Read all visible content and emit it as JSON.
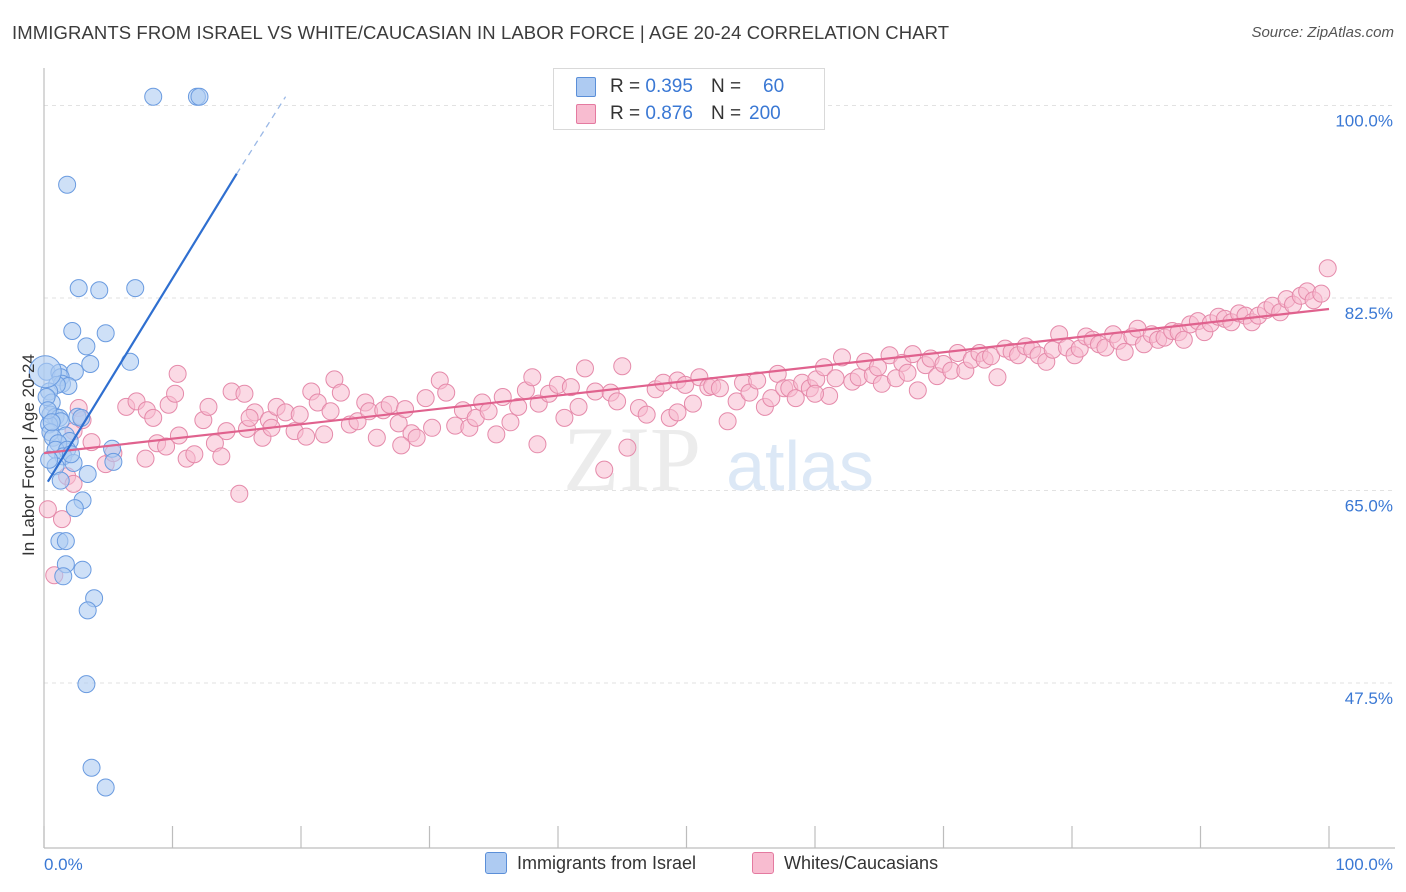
{
  "header": {
    "title": "IMMIGRANTS FROM ISRAEL VS WHITE/CAUCASIAN IN LABOR FORCE | AGE 20-24 CORRELATION CHART",
    "source": "Source: ZipAtlas.com"
  },
  "watermark": {
    "zip": "ZIP",
    "atlas": "atlas"
  },
  "legend": {
    "r_label": "R =",
    "n_label": "N =",
    "rows": [
      {
        "r": "0.395",
        "n": "60",
        "fill": "#aecbf2",
        "stroke": "#5b8fd8"
      },
      {
        "r": "0.876",
        "n": "200",
        "fill": "#f8bcd0",
        "stroke": "#e47aa0"
      }
    ]
  },
  "bottom_legend": {
    "items": [
      {
        "label": "Immigrants from Israel",
        "fill": "#aecbf2",
        "stroke": "#5b8fd8"
      },
      {
        "label": "Whites/Caucasians",
        "fill": "#f8bcd0",
        "stroke": "#e47aa0"
      }
    ]
  },
  "chart_data": {
    "type": "scatter",
    "ylabel": "In Labor Force | Age 20-24",
    "xlim": [
      0,
      100
    ],
    "ylim": [
      32.5,
      102.5
    ],
    "x_tick_labels": [
      "0.0%",
      "100.0%"
    ],
    "y_ticks": [
      47.5,
      65.0,
      82.5,
      100.0
    ],
    "y_tick_labels": [
      "47.5%",
      "65.0%",
      "82.5%",
      "100.0%"
    ],
    "grid": true,
    "colors": {
      "blue_fill": "#aecbf2",
      "blue_line": "#2f6fd0",
      "pink_fill": "#f8bcd0",
      "pink_line": "#e0628e",
      "tick_text": "#3a78d4"
    },
    "series": [
      {
        "name": "Immigrants from Israel",
        "trend": {
          "x": [
            0.3,
            15
          ],
          "y": [
            65.8,
            93.8
          ],
          "dashed_to": [
            18.8,
            100.8
          ]
        },
        "points": [
          [
            8.5,
            100.8
          ],
          [
            11.9,
            100.8
          ],
          [
            12.1,
            100.8
          ],
          [
            1.8,
            92.8
          ],
          [
            2.7,
            83.4
          ],
          [
            4.3,
            83.2
          ],
          [
            7.1,
            83.4
          ],
          [
            2.2,
            79.5
          ],
          [
            4.8,
            79.3
          ],
          [
            3.3,
            78.1
          ],
          [
            3.6,
            76.5
          ],
          [
            6.7,
            76.7
          ],
          [
            0.2,
            75.8
          ],
          [
            1.2,
            75.7
          ],
          [
            2.4,
            75.8
          ],
          [
            1.3,
            75.3
          ],
          [
            1.4,
            74.7
          ],
          [
            1.9,
            74.5
          ],
          [
            1.0,
            74.6
          ],
          [
            0.4,
            74.0
          ],
          [
            0.6,
            73.0
          ],
          [
            0.5,
            71.9
          ],
          [
            0.9,
            71.7
          ],
          [
            1.2,
            71.6
          ],
          [
            1.3,
            71.3
          ],
          [
            2.6,
            71.7
          ],
          [
            2.9,
            71.6
          ],
          [
            0.4,
            71.0
          ],
          [
            0.5,
            70.3
          ],
          [
            1.7,
            70.0
          ],
          [
            2.0,
            69.5
          ],
          [
            0.7,
            69.8
          ],
          [
            1.1,
            69.3
          ],
          [
            0.9,
            68.7
          ],
          [
            1.8,
            68.7
          ],
          [
            5.3,
            68.8
          ],
          [
            1.5,
            68.1
          ],
          [
            2.3,
            67.5
          ],
          [
            0.9,
            67.2
          ],
          [
            3.4,
            66.5
          ],
          [
            5.4,
            67.6
          ],
          [
            1.3,
            65.9
          ],
          [
            3.0,
            64.1
          ],
          [
            2.4,
            63.4
          ],
          [
            1.2,
            60.4
          ],
          [
            1.7,
            60.4
          ],
          [
            1.7,
            58.3
          ],
          [
            3.0,
            57.8
          ],
          [
            1.5,
            57.2
          ],
          [
            3.9,
            55.2
          ],
          [
            3.4,
            54.1
          ],
          [
            3.3,
            47.4
          ],
          [
            3.7,
            39.8
          ],
          [
            4.8,
            38.0
          ],
          [
            0.1,
            75.8
          ],
          [
            0.2,
            73.5
          ],
          [
            0.3,
            72.3
          ],
          [
            0.6,
            71.2
          ],
          [
            2.1,
            68.3
          ],
          [
            0.4,
            67.8
          ]
        ]
      },
      {
        "name": "Whites/Caucasians",
        "trend": {
          "x": [
            0,
            100
          ],
          "y": [
            68.4,
            81.5
          ]
        },
        "points": [
          [
            0.3,
            63.3
          ],
          [
            1.4,
            62.4
          ],
          [
            0.8,
            57.3
          ],
          [
            1.8,
            66.3
          ],
          [
            2.3,
            65.6
          ],
          [
            2.3,
            70.4
          ],
          [
            2.7,
            72.5
          ],
          [
            3.0,
            71.4
          ],
          [
            3.7,
            69.4
          ],
          [
            4.8,
            67.4
          ],
          [
            5.4,
            68.4
          ],
          [
            6.4,
            72.6
          ],
          [
            7.2,
            73.1
          ],
          [
            7.9,
            67.9
          ],
          [
            8.0,
            72.3
          ],
          [
            8.5,
            71.6
          ],
          [
            8.8,
            69.3
          ],
          [
            9.5,
            69.0
          ],
          [
            9.7,
            72.8
          ],
          [
            10.2,
            73.8
          ],
          [
            10.4,
            75.6
          ],
          [
            10.5,
            70.0
          ],
          [
            11.1,
            67.9
          ],
          [
            11.7,
            68.3
          ],
          [
            12.4,
            71.4
          ],
          [
            12.8,
            72.6
          ],
          [
            13.3,
            69.3
          ],
          [
            13.8,
            68.1
          ],
          [
            14.2,
            70.4
          ],
          [
            14.6,
            74.0
          ],
          [
            15.2,
            64.7
          ],
          [
            15.6,
            73.8
          ],
          [
            15.8,
            70.6
          ],
          [
            16.4,
            72.1
          ],
          [
            17.0,
            69.8
          ],
          [
            17.5,
            71.4
          ],
          [
            17.7,
            70.7
          ],
          [
            18.1,
            72.6
          ],
          [
            18.8,
            72.1
          ],
          [
            19.5,
            70.4
          ],
          [
            19.9,
            71.9
          ],
          [
            20.4,
            69.9
          ],
          [
            20.8,
            74.0
          ],
          [
            21.3,
            73.0
          ],
          [
            21.8,
            70.1
          ],
          [
            22.3,
            72.2
          ],
          [
            22.6,
            75.1
          ],
          [
            23.1,
            73.9
          ],
          [
            23.8,
            71.0
          ],
          [
            24.4,
            71.3
          ],
          [
            25.0,
            73.0
          ],
          [
            25.3,
            72.2
          ],
          [
            25.9,
            69.8
          ],
          [
            26.4,
            72.3
          ],
          [
            26.9,
            72.8
          ],
          [
            27.6,
            71.1
          ],
          [
            28.1,
            72.4
          ],
          [
            28.6,
            70.2
          ],
          [
            29.0,
            69.8
          ],
          [
            29.7,
            73.4
          ],
          [
            30.2,
            70.7
          ],
          [
            30.8,
            75.0
          ],
          [
            31.3,
            73.9
          ],
          [
            32.0,
            70.9
          ],
          [
            32.6,
            72.3
          ],
          [
            33.1,
            70.7
          ],
          [
            33.6,
            71.6
          ],
          [
            34.1,
            73.0
          ],
          [
            34.6,
            72.2
          ],
          [
            35.2,
            70.1
          ],
          [
            35.7,
            73.5
          ],
          [
            36.3,
            71.2
          ],
          [
            36.9,
            72.6
          ],
          [
            37.5,
            74.1
          ],
          [
            38.0,
            75.3
          ],
          [
            38.5,
            72.9
          ],
          [
            39.3,
            73.8
          ],
          [
            40.0,
            74.6
          ],
          [
            40.5,
            71.6
          ],
          [
            41.0,
            74.4
          ],
          [
            41.6,
            72.6
          ],
          [
            42.1,
            76.1
          ],
          [
            42.9,
            74.0
          ],
          [
            43.6,
            66.9
          ],
          [
            44.1,
            73.9
          ],
          [
            44.6,
            73.1
          ],
          [
            45.0,
            76.3
          ],
          [
            45.4,
            68.9
          ],
          [
            46.3,
            72.5
          ],
          [
            46.9,
            71.9
          ],
          [
            47.6,
            74.2
          ],
          [
            48.2,
            74.8
          ],
          [
            48.7,
            71.6
          ],
          [
            49.3,
            75.0
          ],
          [
            49.9,
            74.6
          ],
          [
            50.5,
            72.9
          ],
          [
            51.0,
            75.3
          ],
          [
            51.7,
            74.4
          ],
          [
            52.0,
            74.5
          ],
          [
            52.6,
            74.3
          ],
          [
            53.2,
            71.3
          ],
          [
            53.9,
            73.1
          ],
          [
            54.4,
            74.8
          ],
          [
            54.9,
            73.9
          ],
          [
            55.5,
            75.0
          ],
          [
            56.1,
            72.6
          ],
          [
            56.6,
            73.4
          ],
          [
            57.1,
            75.6
          ],
          [
            57.6,
            74.3
          ],
          [
            58.0,
            74.3
          ],
          [
            58.5,
            73.4
          ],
          [
            59.0,
            74.8
          ],
          [
            59.6,
            74.3
          ],
          [
            60.1,
            75.1
          ],
          [
            60.7,
            76.2
          ],
          [
            61.1,
            73.6
          ],
          [
            61.6,
            75.2
          ],
          [
            62.1,
            77.1
          ],
          [
            62.9,
            74.9
          ],
          [
            63.4,
            75.3
          ],
          [
            63.9,
            76.7
          ],
          [
            64.5,
            75.5
          ],
          [
            64.9,
            76.2
          ],
          [
            65.2,
            74.7
          ],
          [
            65.8,
            77.3
          ],
          [
            66.3,
            75.2
          ],
          [
            66.8,
            76.6
          ],
          [
            67.2,
            75.7
          ],
          [
            67.6,
            77.4
          ],
          [
            68.0,
            74.1
          ],
          [
            68.6,
            76.4
          ],
          [
            69.0,
            77.0
          ],
          [
            69.5,
            75.4
          ],
          [
            70.0,
            76.5
          ],
          [
            70.6,
            75.9
          ],
          [
            71.1,
            77.5
          ],
          [
            71.7,
            75.9
          ],
          [
            72.2,
            76.9
          ],
          [
            72.8,
            77.5
          ],
          [
            73.2,
            76.9
          ],
          [
            73.7,
            77.2
          ],
          [
            74.2,
            75.3
          ],
          [
            74.8,
            77.9
          ],
          [
            75.3,
            77.6
          ],
          [
            75.8,
            77.3
          ],
          [
            76.4,
            78.1
          ],
          [
            76.9,
            77.8
          ],
          [
            77.4,
            77.3
          ],
          [
            78.0,
            76.7
          ],
          [
            78.5,
            77.8
          ],
          [
            79.0,
            79.2
          ],
          [
            79.6,
            78.0
          ],
          [
            80.2,
            77.3
          ],
          [
            80.6,
            77.9
          ],
          [
            81.1,
            79.0
          ],
          [
            81.6,
            78.7
          ],
          [
            82.1,
            78.3
          ],
          [
            82.6,
            78.0
          ],
          [
            83.2,
            79.2
          ],
          [
            83.6,
            78.6
          ],
          [
            84.1,
            77.6
          ],
          [
            84.7,
            79.0
          ],
          [
            85.1,
            79.7
          ],
          [
            85.6,
            78.3
          ],
          [
            86.2,
            79.2
          ],
          [
            86.7,
            78.7
          ],
          [
            87.2,
            78.9
          ],
          [
            87.8,
            79.5
          ],
          [
            88.3,
            79.4
          ],
          [
            88.7,
            78.7
          ],
          [
            89.2,
            80.1
          ],
          [
            89.8,
            80.4
          ],
          [
            90.3,
            79.4
          ],
          [
            90.8,
            80.2
          ],
          [
            91.4,
            80.8
          ],
          [
            91.9,
            80.6
          ],
          [
            92.4,
            80.3
          ],
          [
            93.0,
            81.1
          ],
          [
            93.5,
            80.9
          ],
          [
            94.0,
            80.3
          ],
          [
            94.5,
            80.9
          ],
          [
            95.1,
            81.4
          ],
          [
            95.6,
            81.8
          ],
          [
            96.2,
            81.2
          ],
          [
            96.7,
            82.4
          ],
          [
            97.2,
            81.9
          ],
          [
            97.8,
            82.7
          ],
          [
            98.3,
            83.1
          ],
          [
            98.8,
            82.3
          ],
          [
            99.4,
            82.9
          ],
          [
            99.9,
            85.2
          ],
          [
            60.0,
            73.8
          ],
          [
            49.3,
            72.1
          ],
          [
            38.4,
            69.2
          ],
          [
            27.8,
            69.1
          ],
          [
            16.0,
            71.6
          ]
        ]
      }
    ]
  }
}
